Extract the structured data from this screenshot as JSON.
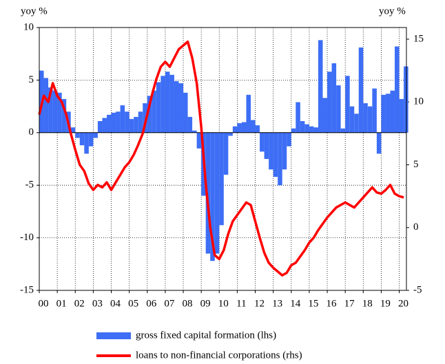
{
  "chart_data": {
    "type": "bar-line",
    "ylabel": "yoy %",
    "y2label": "yoy %",
    "xlim": [
      2000,
      2020.4
    ],
    "xticks": [
      {
        "value": 2000,
        "label": "00"
      },
      {
        "value": 2001,
        "label": "01"
      },
      {
        "value": 2002,
        "label": "02"
      },
      {
        "value": 2003,
        "label": "03"
      },
      {
        "value": 2004,
        "label": "04"
      },
      {
        "value": 2005,
        "label": "05"
      },
      {
        "value": 2006,
        "label": "06"
      },
      {
        "value": 2007,
        "label": "07"
      },
      {
        "value": 2008,
        "label": "08"
      },
      {
        "value": 2009,
        "label": "09"
      },
      {
        "value": 2010,
        "label": "10"
      },
      {
        "value": 2011,
        "label": "11"
      },
      {
        "value": 2012,
        "label": "12"
      },
      {
        "value": 2013,
        "label": "13"
      },
      {
        "value": 2014,
        "label": "14"
      },
      {
        "value": 2015,
        "label": "15"
      },
      {
        "value": 2016,
        "label": "16"
      },
      {
        "value": 2017,
        "label": "17"
      },
      {
        "value": 2018,
        "label": "18"
      },
      {
        "value": 2019,
        "label": "19"
      },
      {
        "value": 2020,
        "label": "20"
      }
    ],
    "ylim": [
      -15,
      10
    ],
    "yticks": [
      -15,
      -10,
      -5,
      0,
      5,
      10
    ],
    "y2lim": [
      -5,
      15.93
    ],
    "y2ticks": [
      -5,
      0,
      5,
      10,
      15
    ],
    "grid": true,
    "series": [
      {
        "name": "gross fixed capital formation (lhs)",
        "type": "bar",
        "color": "#3d6ef5",
        "x": [
          2000,
          2000.25,
          2000.5,
          2000.75,
          2001,
          2001.25,
          2001.5,
          2001.75,
          2002,
          2002.25,
          2002.5,
          2002.75,
          2003,
          2003.25,
          2003.5,
          2003.75,
          2004,
          2004.25,
          2004.5,
          2004.75,
          2005,
          2005.25,
          2005.5,
          2005.75,
          2006,
          2006.25,
          2006.5,
          2006.75,
          2007,
          2007.25,
          2007.5,
          2007.75,
          2008,
          2008.25,
          2008.5,
          2008.75,
          2009,
          2009.25,
          2009.5,
          2009.75,
          2010,
          2010.25,
          2010.5,
          2010.75,
          2011,
          2011.25,
          2011.5,
          2011.75,
          2012,
          2012.25,
          2012.5,
          2012.75,
          2013,
          2013.25,
          2013.5,
          2013.75,
          2014,
          2014.25,
          2014.5,
          2014.75,
          2015,
          2015.25,
          2015.5,
          2015.75,
          2016,
          2016.25,
          2016.5,
          2016.75,
          2017,
          2017.25,
          2017.5,
          2017.75,
          2018,
          2018.25,
          2018.5,
          2018.75,
          2019,
          2019.25,
          2019.5,
          2019.75,
          2020,
          2020.25
        ],
        "values": [
          5.9,
          5.2,
          4.3,
          4.0,
          3.8,
          3.2,
          2.0,
          0.5,
          -0.5,
          -1.2,
          -2.0,
          -1.3,
          -0.5,
          1.1,
          1.4,
          1.7,
          1.9,
          2.0,
          2.6,
          2.0,
          1.3,
          1.5,
          2.0,
          2.8,
          3.5,
          4.0,
          4.8,
          5.4,
          5.8,
          5.5,
          4.9,
          4.7,
          3.8,
          1.5,
          0.2,
          -1.5,
          -6.0,
          -11.5,
          -12.2,
          -11.5,
          -8.8,
          -4.0,
          -0.3,
          0.6,
          0.9,
          1.0,
          3.6,
          1.2,
          0.7,
          -1.8,
          -2.5,
          -3.5,
          -4.2,
          -5.0,
          -3.5,
          -1.3,
          0.4,
          2.9,
          1.1,
          0.8,
          0.6,
          0.5,
          8.8,
          3.3,
          5.8,
          6.6,
          4.5,
          0.4,
          5.4,
          2.5,
          1.8,
          8.1,
          2.8,
          2.5,
          4.2,
          -2.0,
          3.6,
          3.7,
          4.0,
          8.2,
          3.2,
          6.3
        ]
      },
      {
        "name": "loans to non-financial corporations (rhs)",
        "type": "line",
        "axis": "y2",
        "color": "#ff0000",
        "x": [
          2000,
          2000.25,
          2000.5,
          2000.75,
          2001,
          2001.25,
          2001.5,
          2001.75,
          2002,
          2002.25,
          2002.5,
          2002.75,
          2003,
          2003.25,
          2003.5,
          2003.75,
          2004,
          2004.25,
          2004.5,
          2004.75,
          2005,
          2005.25,
          2005.5,
          2005.75,
          2006,
          2006.25,
          2006.5,
          2006.75,
          2007,
          2007.25,
          2007.5,
          2007.75,
          2008,
          2008.25,
          2008.5,
          2008.75,
          2009,
          2009.25,
          2009.5,
          2009.75,
          2010,
          2010.25,
          2010.5,
          2010.75,
          2011,
          2011.25,
          2011.5,
          2011.75,
          2012,
          2012.25,
          2012.5,
          2012.75,
          2013,
          2013.25,
          2013.5,
          2013.75,
          2014,
          2014.25,
          2014.5,
          2014.75,
          2015,
          2015.25,
          2015.5,
          2015.75,
          2016,
          2016.25,
          2016.5,
          2016.75,
          2017,
          2017.25,
          2017.5,
          2017.75,
          2018,
          2018.25,
          2018.5,
          2018.75,
          2019,
          2019.25,
          2019.5,
          2019.75,
          2020,
          2020.25
        ],
        "values": [
          9.0,
          10.5,
          10.0,
          11.5,
          10.5,
          10.0,
          9.0,
          7.5,
          6.2,
          5.0,
          4.5,
          3.5,
          3.0,
          3.4,
          3.2,
          3.6,
          3.0,
          3.6,
          4.2,
          4.8,
          5.2,
          5.8,
          6.6,
          7.5,
          9.0,
          10.5,
          11.8,
          12.8,
          13.2,
          12.8,
          13.5,
          14.2,
          14.5,
          14.8,
          13.5,
          11.5,
          8.0,
          3.5,
          0.0,
          -2.2,
          -2.5,
          -1.8,
          -0.5,
          0.5,
          1.0,
          1.5,
          2.0,
          1.8,
          0.5,
          -0.8,
          -2.0,
          -2.8,
          -3.2,
          -3.5,
          -3.8,
          -3.6,
          -3.0,
          -2.8,
          -2.3,
          -1.8,
          -1.2,
          -0.8,
          -0.2,
          0.3,
          0.8,
          1.2,
          1.6,
          1.8,
          2.0,
          1.8,
          1.6,
          2.0,
          2.4,
          2.8,
          3.2,
          2.8,
          2.7,
          3.0,
          3.4,
          2.7,
          2.5,
          2.4
        ]
      }
    ]
  }
}
